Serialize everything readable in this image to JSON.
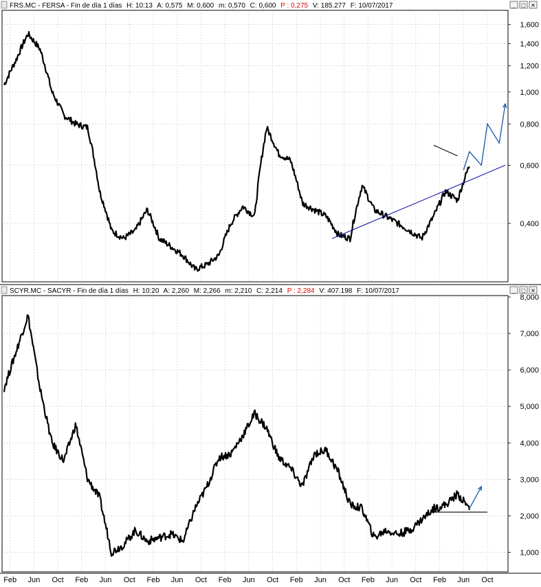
{
  "panels": [
    {
      "header": {
        "ticker": "FRS.MC - FERSA - Fin de día 1 días",
        "h": "H: 10:13",
        "a": "A: 0,575",
        "m_max": "M: 0,600",
        "m_min": "m: 0,570",
        "c": "C: 0,600",
        "p": "P : 0,275",
        "v": "V: 185.277",
        "f": "F: 10/07/2017"
      },
      "buttons": {
        "minimize": "_",
        "maximize": "□",
        "close": "✕"
      }
    },
    {
      "header": {
        "ticker": "SCYR.MC - SACYR - Fin de día 1 días",
        "h": "H: 10:20",
        "a": "A: 2,260",
        "m_max": "M: 2,266",
        "m_min": "m: 2,210",
        "c": "C: 2,214",
        "p": "P : 2,284",
        "v": "V: 407.198",
        "f": "F: 10/07/2017"
      },
      "buttons": {
        "minimize": "_",
        "maximize": "□",
        "close": "✕"
      }
    }
  ],
  "x_axis": {
    "labels": [
      "Feb",
      "Jun",
      "Oct",
      "Feb",
      "Jun",
      "Oct",
      "Feb",
      "Jun",
      "Oct",
      "Feb",
      "Jun",
      "Oct",
      "Feb",
      "Jun",
      "Oct",
      "Feb",
      "Jun",
      "Oct",
      "Feb",
      "Jun",
      "Oct"
    ]
  },
  "colors": {
    "price": "#000000",
    "trend": "#1a1aa8",
    "arrow": "#1f5fa8",
    "grid": "#9a9a9a",
    "highlight": "#e00000"
  },
  "chart_data": [
    {
      "type": "line",
      "title": "FRS.MC - FERSA",
      "scale": "log",
      "ylim": [
        0.27,
        1.75
      ],
      "yticks": [
        0.4,
        0.6,
        0.8,
        1.0,
        1.2,
        1.4,
        1.6
      ],
      "ytick_labels": [
        "0,400",
        "0,600",
        "0,800",
        "1,000",
        "1,200",
        "1,400",
        "1,600"
      ],
      "x": [
        "2011-01",
        "2011-03",
        "2011-05",
        "2011-07",
        "2011-09",
        "2011-11",
        "2012-01",
        "2012-03",
        "2012-05",
        "2012-07",
        "2012-09",
        "2012-11",
        "2013-01",
        "2013-03",
        "2013-05",
        "2013-07",
        "2013-09",
        "2013-11",
        "2014-01",
        "2014-03",
        "2014-05",
        "2014-07",
        "2014-09",
        "2014-11",
        "2015-01",
        "2015-03",
        "2015-05",
        "2015-07",
        "2015-09",
        "2015-11",
        "2016-01",
        "2016-03",
        "2016-05",
        "2016-07",
        "2016-09",
        "2016-11",
        "2017-01",
        "2017-03",
        "2017-05",
        "2017-07"
      ],
      "values": [
        1.05,
        1.25,
        1.5,
        1.35,
        1.0,
        0.85,
        0.8,
        0.78,
        0.5,
        0.38,
        0.36,
        0.38,
        0.44,
        0.36,
        0.34,
        0.32,
        0.29,
        0.3,
        0.32,
        0.4,
        0.45,
        0.42,
        0.78,
        0.65,
        0.62,
        0.46,
        0.44,
        0.42,
        0.37,
        0.36,
        0.52,
        0.44,
        0.42,
        0.4,
        0.38,
        0.36,
        0.42,
        0.5,
        0.47,
        0.6
      ],
      "annotations": [
        {
          "type": "trendline",
          "from": [
            "2015-08",
            0.36
          ],
          "to": [
            "2018-01",
            0.6
          ]
        },
        {
          "type": "triangle-line",
          "from": [
            "2017-01",
            0.69
          ],
          "to": [
            "2017-05",
            0.64
          ]
        },
        {
          "type": "projection",
          "points": [
            [
              "2017-06",
              0.58
            ],
            [
              "2017-07",
              0.66
            ],
            [
              "2017-09",
              0.6
            ],
            [
              "2017-10",
              0.8
            ],
            [
              "2017-12",
              0.7
            ],
            [
              "2018-01",
              0.92
            ]
          ]
        }
      ]
    },
    {
      "type": "line",
      "title": "SCYR.MC - SACYR",
      "scale": "linear",
      "ylim": [
        0.5,
        8.0
      ],
      "yticks": [
        1,
        2,
        3,
        4,
        5,
        6,
        7,
        8
      ],
      "ytick_labels": [
        "1,000",
        "2,000",
        "3,000",
        "4,000",
        "5,000",
        "6,000",
        "7,000",
        "8,000"
      ],
      "x": [
        "2011-01",
        "2011-03",
        "2011-05",
        "2011-07",
        "2011-09",
        "2011-11",
        "2012-01",
        "2012-03",
        "2012-05",
        "2012-07",
        "2012-09",
        "2012-11",
        "2013-01",
        "2013-03",
        "2013-05",
        "2013-07",
        "2013-09",
        "2013-11",
        "2014-01",
        "2014-03",
        "2014-05",
        "2014-07",
        "2014-09",
        "2014-11",
        "2015-01",
        "2015-03",
        "2015-05",
        "2015-07",
        "2015-09",
        "2015-11",
        "2016-01",
        "2016-03",
        "2016-05",
        "2016-07",
        "2016-09",
        "2016-11",
        "2017-01",
        "2017-03",
        "2017-05",
        "2017-07"
      ],
      "values": [
        5.5,
        6.5,
        7.5,
        5.5,
        4.0,
        3.5,
        4.5,
        3.0,
        2.5,
        1.0,
        1.2,
        1.6,
        1.3,
        1.4,
        1.5,
        1.3,
        2.2,
        2.8,
        3.6,
        3.7,
        4.2,
        4.8,
        4.4,
        3.6,
        3.3,
        2.8,
        3.7,
        3.8,
        3.2,
        2.3,
        2.2,
        1.4,
        1.6,
        1.5,
        1.6,
        1.9,
        2.2,
        2.3,
        2.6,
        2.2
      ],
      "annotations": [
        {
          "type": "support-line",
          "from": [
            "2017-01",
            2.1
          ],
          "to": [
            "2017-10",
            2.1
          ]
        },
        {
          "type": "projection",
          "points": [
            [
              "2017-07",
              2.2
            ],
            [
              "2017-09",
              2.8
            ]
          ]
        }
      ]
    }
  ]
}
